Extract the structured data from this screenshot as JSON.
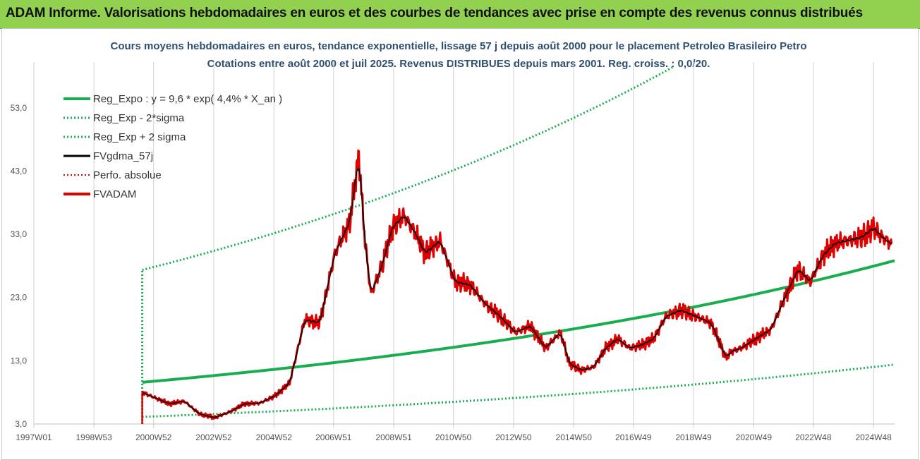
{
  "banner": "ADAM Informe. Valorisations hebdomadaires en euros et des courbes de tendances avec prise en compte des revenus connus distribués",
  "chart_data": {
    "type": "line",
    "title": "Cours moyens hebdomadaires en euros, tendance exponentielle, lissage 57 j depuis août 2000 pour le placement Petroleo Brasileiro Petro",
    "subtitle": "Cotations entre août 2000 et juil 2025. Revenus DISTRIBUES depuis mars 2001. Reg. croiss. : 0,0/20.",
    "ylim": [
      3,
      58
    ],
    "yticks": [
      "3,0",
      "13,0",
      "23,0",
      "33,0",
      "43,0",
      "53,0"
    ],
    "xticks": [
      "1997W01",
      "1998W53",
      "2000W52",
      "2002W52",
      "2004W52",
      "2006W51",
      "2008W51",
      "2010W50",
      "2012W50",
      "2014W50",
      "2016W49",
      "2018W49",
      "2020W49",
      "2022W48",
      "2024W48"
    ],
    "x_start_year": 1997.0,
    "x_end_year": 2025.6,
    "grid": "vertical",
    "legend_position": "top-left",
    "colors": {
      "reg": "#1aad4f",
      "sigma": "#1aad4f",
      "smooth": "#000000",
      "perfo": "#e00000",
      "fvadam": "#e00000"
    },
    "series": [
      {
        "name": "Reg_Expo : y = 9,6 * exp( 4,4% *  X_an )",
        "kind": "regression",
        "a": 9.6,
        "rate": 0.044,
        "start": 2000.6
      },
      {
        "name": "Reg_Exp - 2*sigma",
        "kind": "lower-band",
        "start": 2000.6
      },
      {
        "name": "Reg_Exp + 2 sigma",
        "kind": "upper-band",
        "start": 2000.6
      },
      {
        "name": "FVgdma_57j",
        "kind": "smoothed"
      },
      {
        "name": "Perfo. absolue",
        "kind": "perfo"
      },
      {
        "name": "FVADAM",
        "kind": "price",
        "x": [
          2000.6,
          2001.0,
          2001.5,
          2002.0,
          2002.5,
          2003.0,
          2003.5,
          2004.0,
          2004.5,
          2005.0,
          2005.5,
          2006.0,
          2006.5,
          2007.0,
          2007.5,
          2007.8,
          2008.0,
          2008.2,
          2008.6,
          2008.9,
          2009.3,
          2009.7,
          2010.0,
          2010.5,
          2011.0,
          2011.5,
          2012.0,
          2012.5,
          2013.0,
          2013.5,
          2014.0,
          2014.5,
          2014.8,
          2015.2,
          2015.6,
          2016.0,
          2016.4,
          2016.8,
          2017.2,
          2017.6,
          2018.0,
          2018.5,
          2019.0,
          2019.5,
          2020.0,
          2020.2,
          2020.5,
          2021.0,
          2021.5,
          2022.0,
          2022.4,
          2022.8,
          2023.2,
          2023.6,
          2024.0,
          2024.5,
          2024.9,
          2025.2,
          2025.5
        ],
        "values": [
          8.0,
          7.2,
          6.2,
          6.6,
          4.6,
          4.0,
          4.9,
          6.2,
          6.3,
          7.4,
          9.5,
          19.5,
          19.0,
          30.0,
          35.0,
          45.5,
          32.0,
          23.5,
          28.5,
          34.0,
          36.0,
          33.0,
          30.0,
          32.0,
          25.5,
          25.0,
          22.0,
          20.0,
          17.5,
          18.5,
          15.0,
          17.5,
          12.5,
          11.5,
          12.0,
          15.0,
          16.5,
          15.0,
          15.5,
          16.5,
          20.0,
          21.0,
          20.0,
          19.0,
          13.5,
          14.5,
          15.0,
          16.5,
          18.0,
          23.5,
          27.5,
          25.5,
          29.5,
          31.5,
          32.0,
          32.5,
          34.0,
          32.5,
          31.5
        ]
      }
    ]
  }
}
